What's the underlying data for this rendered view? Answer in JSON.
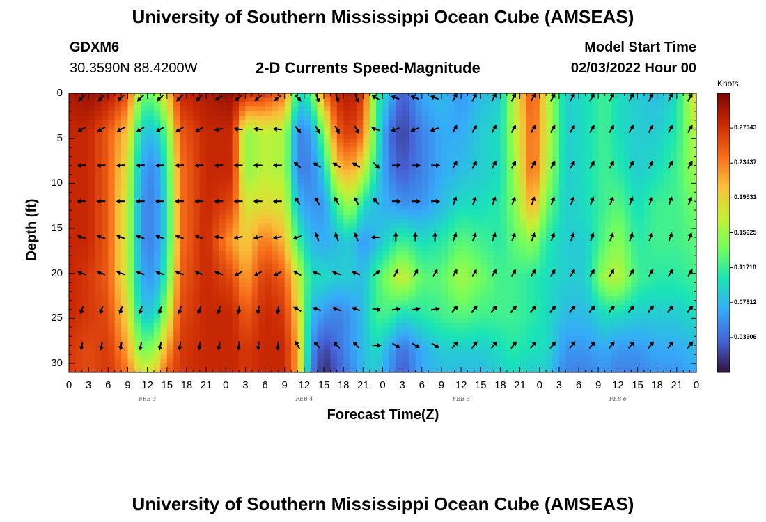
{
  "header": {
    "title_top": "University of Southern Mississippi Ocean Cube (AMSEAS)",
    "title_bottom": "University of Southern Mississippi Ocean Cube (AMSEAS)",
    "station_id": "GDXM6",
    "station_coords": "30.3590N  88.4200W",
    "plot_subtitle": "2-D Currents Speed-Magnitude",
    "model_start_label": "Model Start Time",
    "model_start_value": "02/03/2022 Hour 00"
  },
  "chart_data": {
    "type": "heatmap",
    "title": "2-D Currents Speed-Magnitude",
    "xlabel": "Forecast Time(Z)",
    "ylabel": "Depth (ft)",
    "x_range_hours": [
      0,
      96
    ],
    "y_range_ft": [
      0,
      31
    ],
    "x_tick_labels": [
      "0",
      "3",
      "6",
      "9",
      "12",
      "15",
      "18",
      "21",
      "0",
      "3",
      "6",
      "9",
      "12",
      "15",
      "18",
      "21",
      "0",
      "3",
      "6",
      "9",
      "12",
      "15",
      "18",
      "21",
      "0",
      "3",
      "6",
      "9",
      "12",
      "15",
      "18",
      "21",
      "0"
    ],
    "y_ticks": [
      0,
      5,
      10,
      15,
      20,
      25,
      30
    ],
    "day_labels": [
      {
        "label": "FEB 3",
        "hour": 12
      },
      {
        "label": "FEB 4",
        "hour": 36
      },
      {
        "label": "FEB 5",
        "hour": 60
      },
      {
        "label": "FEB 6",
        "hour": 84
      }
    ],
    "colorbar": {
      "unit": "Knots",
      "min": 0.0,
      "max": 0.3125,
      "tick_values": [
        0.03906,
        0.07812,
        0.11718,
        0.15625,
        0.19531,
        0.23437,
        0.27343
      ],
      "tick_labels": [
        "0.03906",
        "0.07812",
        "0.11718",
        "0.15625",
        "0.19531",
        "0.23437",
        "0.27343"
      ],
      "colors": [
        "#30123b",
        "#4662d7",
        "#36aaf9",
        "#1ae4b6",
        "#72fe5e",
        "#c7ef34",
        "#fabf3a",
        "#f66b19",
        "#cb2a04",
        "#7a0403"
      ]
    },
    "speed_grid_depths_ft": [
      0,
      4.5,
      8.5,
      12.5,
      16.5,
      20.5,
      24.5,
      28.5,
      31
    ],
    "speed_grid": [
      {
        "hour": 0,
        "values": [
          0.29,
          0.28,
          0.28,
          0.28,
          0.28,
          0.28,
          0.28,
          0.27,
          0.27
        ]
      },
      {
        "hour": 3,
        "values": [
          0.3,
          0.28,
          0.28,
          0.28,
          0.28,
          0.27,
          0.27,
          0.26,
          0.26
        ]
      },
      {
        "hour": 6,
        "values": [
          0.29,
          0.25,
          0.25,
          0.25,
          0.25,
          0.25,
          0.26,
          0.27,
          0.27
        ]
      },
      {
        "hour": 9,
        "values": [
          0.26,
          0.2,
          0.18,
          0.17,
          0.17,
          0.17,
          0.19,
          0.22,
          0.24
        ]
      },
      {
        "hour": 11,
        "values": [
          0.14,
          0.09,
          0.07,
          0.06,
          0.06,
          0.07,
          0.09,
          0.14,
          0.18
        ]
      },
      {
        "hour": 13,
        "values": [
          0.14,
          0.08,
          0.05,
          0.05,
          0.05,
          0.06,
          0.09,
          0.15,
          0.19
        ]
      },
      {
        "hour": 15,
        "values": [
          0.2,
          0.13,
          0.11,
          0.1,
          0.1,
          0.12,
          0.16,
          0.22,
          0.25
        ]
      },
      {
        "hour": 17,
        "values": [
          0.28,
          0.25,
          0.24,
          0.24,
          0.24,
          0.25,
          0.26,
          0.27,
          0.27
        ]
      },
      {
        "hour": 21,
        "values": [
          0.29,
          0.28,
          0.28,
          0.28,
          0.28,
          0.28,
          0.28,
          0.28,
          0.28
        ]
      },
      {
        "hour": 25,
        "values": [
          0.3,
          0.28,
          0.28,
          0.26,
          0.22,
          0.26,
          0.28,
          0.28,
          0.28
        ]
      },
      {
        "hour": 27,
        "values": [
          0.28,
          0.15,
          0.15,
          0.18,
          0.2,
          0.22,
          0.25,
          0.27,
          0.27
        ]
      },
      {
        "hour": 30,
        "values": [
          0.27,
          0.17,
          0.17,
          0.19,
          0.24,
          0.27,
          0.28,
          0.28,
          0.28
        ]
      },
      {
        "hour": 33,
        "values": [
          0.24,
          0.16,
          0.16,
          0.18,
          0.21,
          0.25,
          0.27,
          0.28,
          0.28
        ]
      },
      {
        "hour": 35,
        "values": [
          0.1,
          0.05,
          0.05,
          0.08,
          0.12,
          0.18,
          0.2,
          0.22,
          0.22
        ]
      },
      {
        "hour": 37,
        "values": [
          0.12,
          0.06,
          0.05,
          0.06,
          0.08,
          0.1,
          0.08,
          0.06,
          0.05
        ]
      },
      {
        "hour": 39,
        "values": [
          0.24,
          0.14,
          0.09,
          0.06,
          0.07,
          0.1,
          0.06,
          0.02,
          0.01
        ]
      },
      {
        "hour": 41,
        "values": [
          0.28,
          0.25,
          0.2,
          0.12,
          0.08,
          0.09,
          0.05,
          0.04,
          0.03
        ]
      },
      {
        "hour": 43,
        "values": [
          0.29,
          0.27,
          0.22,
          0.16,
          0.09,
          0.09,
          0.06,
          0.06,
          0.05
        ]
      },
      {
        "hour": 45,
        "values": [
          0.27,
          0.24,
          0.18,
          0.1,
          0.06,
          0.08,
          0.08,
          0.08,
          0.08
        ]
      },
      {
        "hour": 47,
        "values": [
          0.12,
          0.12,
          0.1,
          0.08,
          0.08,
          0.12,
          0.12,
          0.1,
          0.09
        ]
      },
      {
        "hour": 49,
        "values": [
          0.08,
          0.04,
          0.05,
          0.07,
          0.1,
          0.15,
          0.12,
          0.07,
          0.06
        ]
      },
      {
        "hour": 51,
        "values": [
          0.03,
          0.02,
          0.03,
          0.06,
          0.12,
          0.18,
          0.1,
          0.04,
          0.03
        ]
      },
      {
        "hour": 54,
        "values": [
          0.07,
          0.05,
          0.05,
          0.06,
          0.1,
          0.13,
          0.11,
          0.07,
          0.07
        ]
      },
      {
        "hour": 57,
        "values": [
          0.08,
          0.07,
          0.07,
          0.08,
          0.11,
          0.13,
          0.12,
          0.09,
          0.08
        ]
      },
      {
        "hour": 60,
        "values": [
          0.06,
          0.07,
          0.08,
          0.1,
          0.13,
          0.16,
          0.13,
          0.09,
          0.08
        ]
      },
      {
        "hour": 63,
        "values": [
          0.08,
          0.09,
          0.09,
          0.1,
          0.12,
          0.14,
          0.12,
          0.09,
          0.08
        ]
      },
      {
        "hour": 66,
        "values": [
          0.09,
          0.1,
          0.1,
          0.11,
          0.11,
          0.12,
          0.12,
          0.1,
          0.09
        ]
      },
      {
        "hour": 68,
        "values": [
          0.17,
          0.16,
          0.15,
          0.14,
          0.13,
          0.12,
          0.12,
          0.11,
          0.1
        ]
      },
      {
        "hour": 71,
        "values": [
          0.26,
          0.25,
          0.25,
          0.22,
          0.15,
          0.11,
          0.11,
          0.1,
          0.09
        ]
      },
      {
        "hour": 73,
        "values": [
          0.18,
          0.18,
          0.17,
          0.14,
          0.11,
          0.1,
          0.1,
          0.1,
          0.09
        ]
      },
      {
        "hour": 76,
        "values": [
          0.09,
          0.09,
          0.09,
          0.09,
          0.09,
          0.09,
          0.08,
          0.06,
          0.05
        ]
      },
      {
        "hour": 79,
        "values": [
          0.1,
          0.1,
          0.1,
          0.1,
          0.09,
          0.09,
          0.08,
          0.06,
          0.05
        ]
      },
      {
        "hour": 82,
        "values": [
          0.12,
          0.12,
          0.12,
          0.12,
          0.13,
          0.16,
          0.1,
          0.07,
          0.06
        ]
      },
      {
        "hour": 84,
        "values": [
          0.1,
          0.1,
          0.11,
          0.13,
          0.15,
          0.17,
          0.1,
          0.06,
          0.05
        ]
      },
      {
        "hour": 87,
        "values": [
          0.09,
          0.09,
          0.09,
          0.1,
          0.11,
          0.12,
          0.09,
          0.06,
          0.05
        ]
      },
      {
        "hour": 90,
        "values": [
          0.08,
          0.09,
          0.1,
          0.12,
          0.12,
          0.11,
          0.09,
          0.07,
          0.06
        ]
      },
      {
        "hour": 93,
        "values": [
          0.1,
          0.11,
          0.12,
          0.12,
          0.12,
          0.11,
          0.09,
          0.07,
          0.06
        ]
      },
      {
        "hour": 96,
        "values": [
          0.2,
          0.17,
          0.16,
          0.14,
          0.13,
          0.12,
          0.1,
          0.08,
          0.07
        ]
      }
    ],
    "vector_depths_ft": [
      0.5,
      4,
      8,
      12,
      16,
      20,
      24,
      28
    ],
    "vector_hours": [
      2,
      5,
      8,
      11,
      14,
      17,
      20,
      23,
      26,
      29,
      32,
      35,
      38,
      41,
      44,
      47,
      50,
      53,
      56,
      59,
      62,
      65,
      68,
      71,
      74,
      77,
      80,
      83,
      86,
      89,
      92,
      95
    ],
    "vector_angle_units": "degrees clockwise from east",
    "vector_segments": [
      {
        "from_hour": 0,
        "to_hour": 21,
        "angle_by_depth": [
          135,
          150,
          175,
          180,
          200,
          200,
          110,
          100
        ]
      },
      {
        "from_hour": 21,
        "to_hour": 24,
        "angle_by_depth": [
          150,
          170,
          175,
          180,
          190,
          200,
          110,
          100
        ]
      },
      {
        "from_hour": 24,
        "to_hour": 33,
        "angle_by_depth": [
          140,
          185,
          180,
          180,
          170,
          150,
          100,
          95
        ]
      },
      {
        "from_hour": 33,
        "to_hour": 38,
        "angle_by_depth": [
          45,
          50,
          220,
          235,
          160,
          210,
          210,
          240
        ]
      },
      {
        "from_hour": 38,
        "to_hour": 46,
        "angle_by_depth": [
          70,
          60,
          210,
          240,
          250,
          200,
          200,
          225
        ]
      },
      {
        "from_hour": 46,
        "to_hour": 50,
        "angle_by_depth": [
          210,
          200,
          45,
          225,
          180,
          320,
          10,
          0
        ]
      },
      {
        "from_hour": 50,
        "to_hour": 57,
        "angle_by_depth": [
          200,
          160,
          0,
          0,
          270,
          300,
          350,
          30
        ]
      },
      {
        "from_hour": 57,
        "to_hour": 96,
        "angle_by_depth": [
          300,
          300,
          300,
          290,
          290,
          300,
          310,
          310
        ]
      }
    ]
  }
}
